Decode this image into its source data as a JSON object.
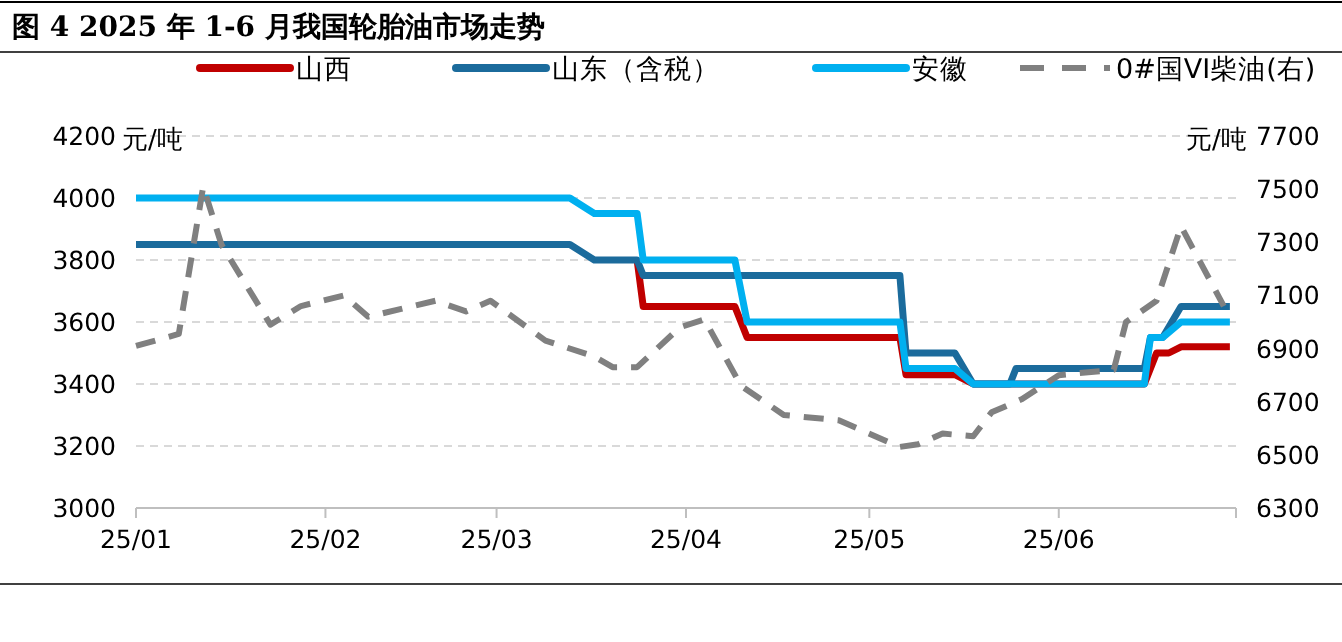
{
  "chart_data": {
    "type": "line",
    "title": "图 4  2025 年 1-6 月我国轮胎油市场走势",
    "ylabel": "元/吨",
    "y2label": "元/吨",
    "legend": "top",
    "grid": "y",
    "marker": "none",
    "xlim": [
      "2025-01-01",
      "2025-06-30"
    ],
    "xticks": [
      {
        "value": "2025-01-01",
        "label": "25/01"
      },
      {
        "value": "2025-02-01",
        "label": "25/02"
      },
      {
        "value": "2025-03-01",
        "label": "25/03"
      },
      {
        "value": "2025-04-01",
        "label": "25/04"
      },
      {
        "value": "2025-05-01",
        "label": "25/05"
      },
      {
        "value": "2025-06-01",
        "label": "25/06"
      }
    ],
    "ylim": [
      3000,
      4200
    ],
    "yticks": [
      3000,
      3200,
      3400,
      3600,
      3800,
      4000,
      4200
    ],
    "y2lim": [
      6300,
      7700
    ],
    "y2ticks": [
      6300,
      6500,
      6700,
      6900,
      7100,
      7300,
      7500,
      7700
    ],
    "series": [
      {
        "name": "山西",
        "color": "#c00000",
        "line_style": "solid",
        "x": [
          "2025-03-24",
          "2025-03-25",
          "2025-04-09",
          "2025-04-11",
          "2025-05-06",
          "2025-05-07",
          "2025-05-15",
          "2025-05-18",
          "2025-06-15",
          "2025-06-17",
          "2025-06-19",
          "2025-06-21",
          "2025-06-29"
        ],
        "values": [
          3800,
          3650,
          3650,
          3550,
          3550,
          3430,
          3430,
          3400,
          3400,
          3500,
          3500,
          3520,
          3520
        ]
      },
      {
        "name": "山东（含税）",
        "color": "#1b6b9c",
        "line_style": "solid",
        "x": [
          "2025-01-01",
          "2025-03-13",
          "2025-03-17",
          "2025-03-24",
          "2025-03-25",
          "2025-05-06",
          "2025-05-07",
          "2025-05-15",
          "2025-05-18",
          "2025-05-24",
          "2025-05-25",
          "2025-06-15",
          "2025-06-16",
          "2025-06-18",
          "2025-06-21",
          "2025-06-29"
        ],
        "values": [
          3850,
          3850,
          3800,
          3800,
          3750,
          3750,
          3500,
          3500,
          3400,
          3400,
          3450,
          3450,
          3550,
          3550,
          3650,
          3650
        ]
      },
      {
        "name": "安徽",
        "color": "#00b0f0",
        "line_style": "solid",
        "x": [
          "2025-01-01",
          "2025-03-13",
          "2025-03-17",
          "2025-03-24",
          "2025-03-25",
          "2025-04-09",
          "2025-04-11",
          "2025-05-06",
          "2025-05-07",
          "2025-05-15",
          "2025-05-18",
          "2025-06-15",
          "2025-06-16",
          "2025-06-18",
          "2025-06-21",
          "2025-06-29"
        ],
        "values": [
          4000,
          4000,
          3950,
          3950,
          3800,
          3800,
          3600,
          3600,
          3450,
          3450,
          3400,
          3400,
          3550,
          3550,
          3600,
          3600
        ]
      },
      {
        "name": "0#国VI柴油(右)",
        "color": "#808080",
        "line_style": "dashed",
        "axis": "y2",
        "x": [
          "2025-01-01",
          "2025-01-08",
          "2025-01-12",
          "2025-01-15",
          "2025-01-23",
          "2025-01-28",
          "2025-02-04",
          "2025-02-08",
          "2025-02-19",
          "2025-02-24",
          "2025-02-28",
          "2025-03-09",
          "2025-03-17",
          "2025-03-20",
          "2025-03-24",
          "2025-03-31",
          "2025-04-04",
          "2025-04-10",
          "2025-04-17",
          "2025-04-26",
          "2025-05-06",
          "2025-05-09",
          "2025-05-13",
          "2025-05-18",
          "2025-05-21",
          "2025-05-26",
          "2025-06-01",
          "2025-06-10",
          "2025-06-12",
          "2025-06-17",
          "2025-06-21",
          "2025-06-28"
        ],
        "values": [
          6910,
          6955,
          7510,
          7290,
          6990,
          7060,
          7100,
          7020,
          7080,
          7040,
          7080,
          6930,
          6870,
          6830,
          6830,
          6980,
          7010,
          6760,
          6650,
          6630,
          6530,
          6540,
          6580,
          6570,
          6660,
          6710,
          6800,
          6820,
          7000,
          7080,
          7360,
          7060
        ]
      }
    ]
  }
}
